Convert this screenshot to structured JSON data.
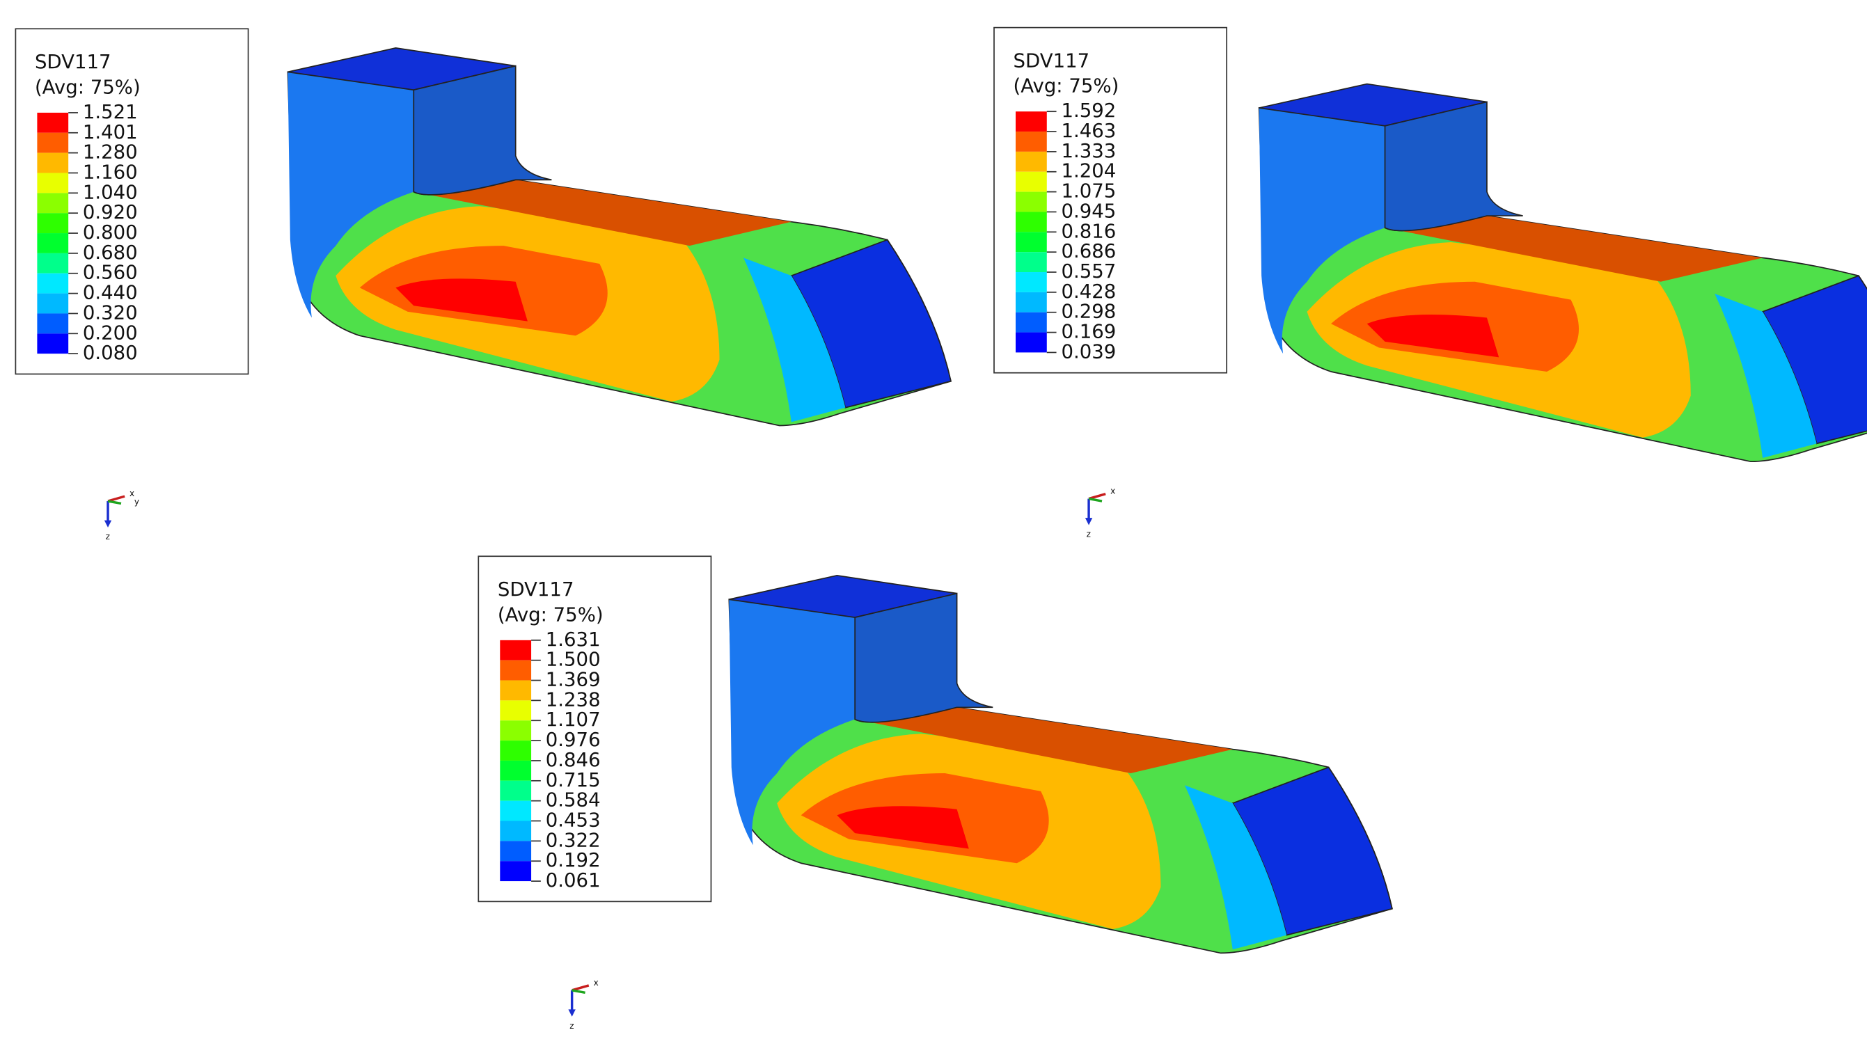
{
  "panels": [
    {
      "legend": {
        "title": "SDV117",
        "subtitle": "(Avg: 75%)",
        "levels": [
          "1.521",
          "1.401",
          "1.280",
          "1.160",
          "1.040",
          "0.920",
          "0.800",
          "0.680",
          "0.560",
          "0.440",
          "0.320",
          "0.200",
          "0.080"
        ]
      },
      "triad": [
        "x",
        "y",
        "z"
      ]
    },
    {
      "legend": {
        "title": "SDV117",
        "subtitle": "(Avg: 75%)",
        "levels": [
          "1.592",
          "1.463",
          "1.333",
          "1.204",
          "1.075",
          "0.945",
          "0.816",
          "0.686",
          "0.557",
          "0.428",
          "0.298",
          "0.169",
          "0.039"
        ]
      },
      "triad": [
        "x",
        "z"
      ]
    },
    {
      "legend": {
        "title": "SDV117",
        "subtitle": "(Avg: 75%)",
        "levels": [
          "1.631",
          "1.500",
          "1.369",
          "1.238",
          "1.107",
          "0.976",
          "0.846",
          "0.715",
          "0.584",
          "0.453",
          "0.322",
          "0.192",
          "0.061"
        ]
      },
      "triad": [
        "x",
        "z"
      ]
    }
  ]
}
